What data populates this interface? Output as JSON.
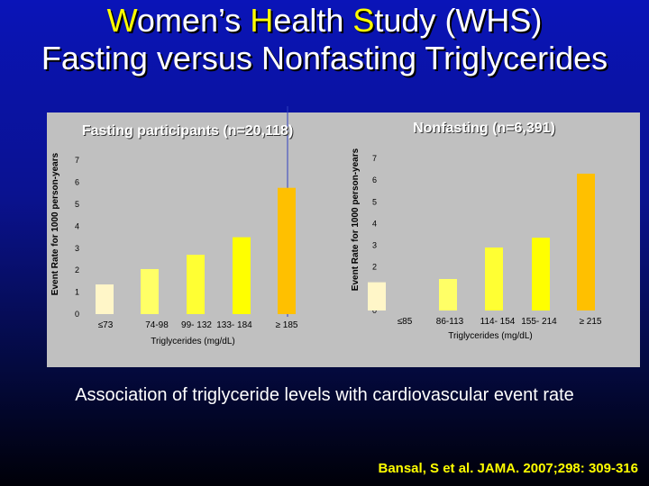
{
  "title": {
    "line1_parts": [
      "W",
      "omen’s ",
      "H",
      "ealth ",
      "S",
      "tudy (WHS)"
    ],
    "line2": "Fasting versus Nonfasting Triglycerides"
  },
  "caption": "Association of triglyceride levels with cardiovascular event rate",
  "citation": "Bansal, S et al. JAMA. 2007;298: 309-316",
  "colors": {
    "title_accent": "#ffff00",
    "background": "#0a14b8",
    "panel": "#c0c0c0",
    "bar_fills": [
      "#fff6c8",
      "#ffff66",
      "#ffff33",
      "#ffff00",
      "#ffc000"
    ],
    "panel_titles": "#ffffff",
    "divider": "#3040c0"
  },
  "chart_data": [
    {
      "type": "bar",
      "title": "Fasting participants (n=20,118)",
      "ylabel": "Event Rate for 1000 person-years",
      "xlabel": "Triglycerides (mg/dL)",
      "categories": [
        "≤73",
        "74-98",
        "99- 132",
        "133- 184",
        "≥ 185"
      ],
      "values": [
        1.35,
        2.05,
        2.7,
        3.5,
        5.75
      ],
      "yticks": [
        "0",
        "1",
        "2",
        "3",
        "4",
        "5",
        "6",
        "7"
      ],
      "ylim": [
        0,
        7.5
      ],
      "grid": false
    },
    {
      "type": "bar",
      "title": "Nonfasting (n=6,391)",
      "ylabel": "Event Rate for 1000 person-years",
      "xlabel": "Triglycerides (mg/dL)",
      "categories": [
        "≤85",
        "86-113",
        "114- 154",
        "155- 214",
        "≥ 215"
      ],
      "values": [
        1.3,
        1.45,
        2.9,
        3.35,
        6.3
      ],
      "yticks": [
        "0",
        "1",
        "2",
        "3",
        "4",
        "5",
        "6",
        "7"
      ],
      "ylim": [
        0,
        7.5
      ],
      "grid": false
    }
  ]
}
